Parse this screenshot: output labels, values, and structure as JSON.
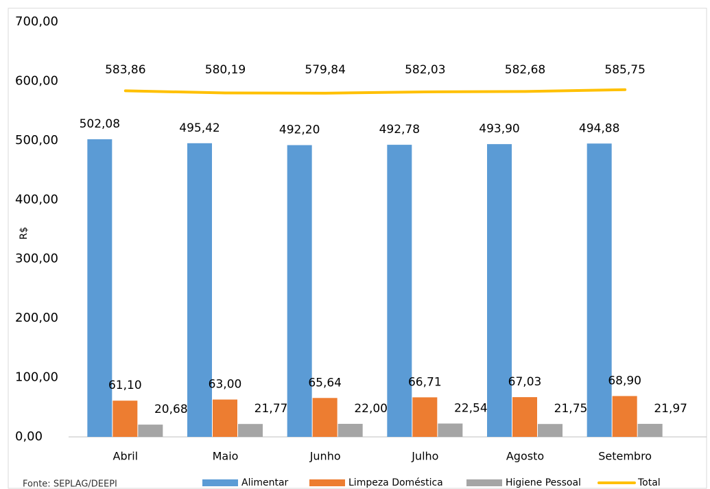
{
  "chart_data": {
    "type": "bar",
    "y_axis_label": "R$",
    "source": "Fonte: SEPLAG/DEEPI",
    "categories": [
      "Abril",
      "Maio",
      "Junho",
      "Julho",
      "Agosto",
      "Setembro"
    ],
    "series": [
      {
        "name": "Alimentar",
        "color": "#5b9bd5",
        "type": "bar",
        "values": [
          502.08,
          495.42,
          492.2,
          492.78,
          493.9,
          494.88
        ],
        "value_labels": [
          "502,08",
          "495,42",
          "492,20",
          "492,78",
          "493,90",
          "494,88"
        ]
      },
      {
        "name": "Limpeza Doméstica",
        "color": "#ed7d31",
        "type": "bar",
        "values": [
          61.1,
          63.0,
          65.64,
          66.71,
          67.03,
          68.9
        ],
        "value_labels": [
          "61,10",
          "63,00",
          "65,64",
          "66,71",
          "67,03",
          "68,90"
        ]
      },
      {
        "name": "Higiene Pessoal",
        "color": "#a5a5a5",
        "type": "bar",
        "values": [
          20.68,
          21.77,
          22.0,
          22.54,
          21.75,
          21.97
        ],
        "value_labels": [
          "20,68",
          "21,77",
          "22,00",
          "22,54",
          "21,75",
          "21,97"
        ]
      },
      {
        "name": "Total",
        "color": "#ffc000",
        "type": "line",
        "values": [
          583.86,
          580.19,
          579.84,
          582.03,
          582.68,
          585.75
        ],
        "value_labels": [
          "583,86",
          "580,19",
          "579,84",
          "582,03",
          "582,68",
          "585,75"
        ]
      }
    ],
    "ylim": [
      0,
      700
    ],
    "yticks": [
      {
        "value": 0,
        "label": "0,00"
      },
      {
        "value": 100,
        "label": "100,00"
      },
      {
        "value": 200,
        "label": "200,00"
      },
      {
        "value": 300,
        "label": "300,00"
      },
      {
        "value": 400,
        "label": "400,00"
      },
      {
        "value": 500,
        "label": "500,00"
      },
      {
        "value": 600,
        "label": "600,00"
      },
      {
        "value": 700,
        "label": "700,00"
      }
    ],
    "grid": false
  }
}
